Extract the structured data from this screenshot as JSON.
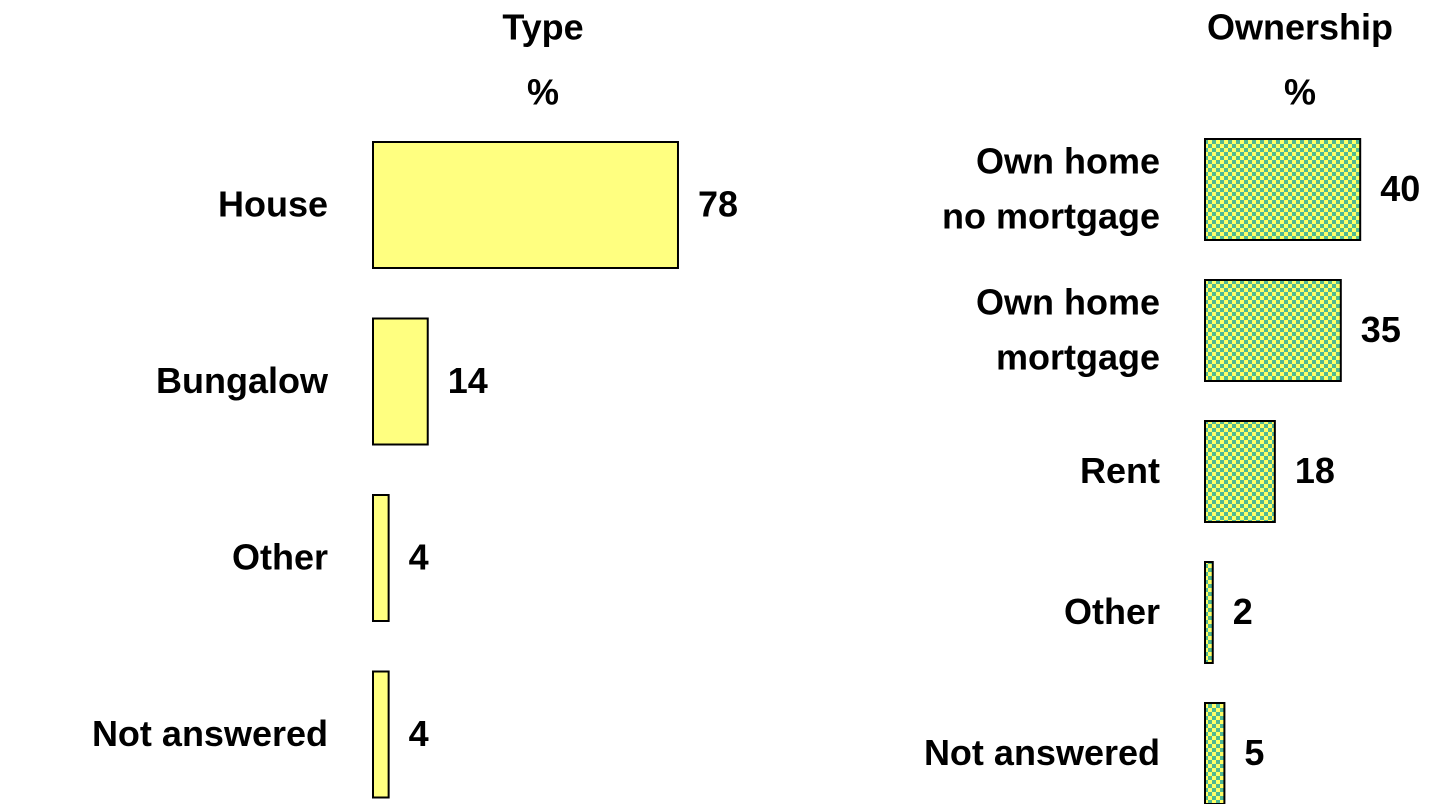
{
  "chart_data": [
    {
      "type": "bar",
      "orientation": "horizontal",
      "title": "Type",
      "subtitle": "%",
      "categories": [
        [
          "House"
        ],
        [
          "Bungalow"
        ],
        [
          "Other"
        ],
        [
          "Not answered"
        ]
      ],
      "values": [
        78,
        14,
        4,
        4
      ],
      "color": "#ffff80",
      "xlim": [
        0,
        100
      ]
    },
    {
      "type": "bar",
      "orientation": "horizontal",
      "title": "Ownership",
      "subtitle": "%",
      "categories": [
        [
          "Own home",
          "no mortgage"
        ],
        [
          "Own home",
          "mortgage"
        ],
        [
          "Rent"
        ],
        [
          "Other"
        ],
        [
          "Not answered"
        ]
      ],
      "values": [
        40,
        35,
        18,
        2,
        5
      ],
      "color": "#ffff66",
      "pattern_color": "#4fb894",
      "pattern": "checkered",
      "xlim": [
        0,
        100
      ]
    }
  ]
}
